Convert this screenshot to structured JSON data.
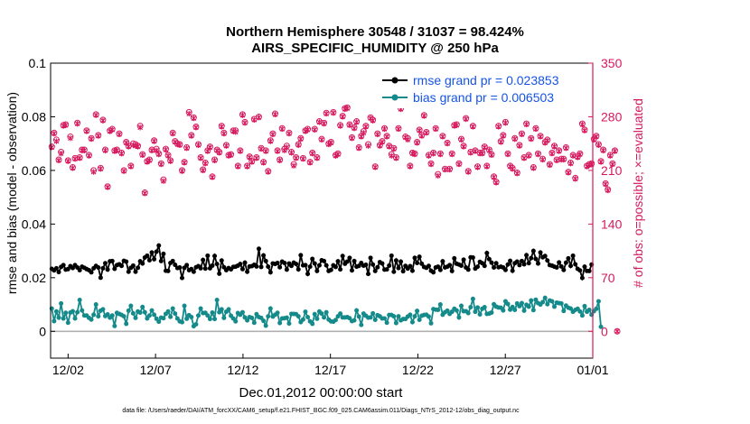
{
  "titles": {
    "line1": "Northern Hemisphere 30548 / 31037 = 98.424%",
    "line2": "AIRS_SPECIFIC_HUMIDITY @ 250 hPa"
  },
  "footer": "data file: /Users/raeder/DAI/ATM_forcXX/CAM6_setup/f.e21.FHIST_BGC.f09_025.CAM6assim.011/Diags_NTrS_2012-12/obs_diag_output.nc",
  "colors": {
    "black_series": "#000000",
    "teal_series": "#148a8a",
    "magenta_obs": "#d6195e",
    "legend_text": "#1553e6"
  },
  "chart_data": {
    "type": "line",
    "title": "Northern Hemisphere 30548 / 31037 = 98.424%",
    "subtitle": "AIRS_SPECIFIC_HUMIDITY @ 250 hPa",
    "xlabel": "Dec.01,2012 00:00:00 start",
    "ylabel": "rmse and bias (model - observation)",
    "y2label": "# of obs: o=possible; ×=evaluated",
    "xlim": [
      0,
      31
    ],
    "ylim": [
      -0.01,
      0.1
    ],
    "y2lim": [
      -35,
      350
    ],
    "x_ticks": [
      {
        "x": 1,
        "label": "12/02"
      },
      {
        "x": 6,
        "label": "12/07"
      },
      {
        "x": 11,
        "label": "12/12"
      },
      {
        "x": 16,
        "label": "12/17"
      },
      {
        "x": 21,
        "label": "12/22"
      },
      {
        "x": 26,
        "label": "12/27"
      },
      {
        "x": 31,
        "label": "01/01"
      }
    ],
    "y_ticks": [
      {
        "v": 0,
        "label": "0"
      },
      {
        "v": 0.02,
        "label": "0.02"
      },
      {
        "v": 0.04,
        "label": "0.04"
      },
      {
        "v": 0.06,
        "label": "0.06"
      },
      {
        "v": 0.08,
        "label": "0.08"
      },
      {
        "v": 0.1,
        "label": "0.1"
      }
    ],
    "y2_ticks": [
      {
        "v": 0,
        "label": "0"
      },
      {
        "v": 70,
        "label": "70"
      },
      {
        "v": 140,
        "label": "140"
      },
      {
        "v": 210,
        "label": "210"
      },
      {
        "v": 280,
        "label": "280"
      },
      {
        "v": 350,
        "label": "350"
      }
    ],
    "legend": [
      "rmse grand pr = 0.023853",
      "bias grand pr = 0.006503"
    ],
    "legend_position": "top-right",
    "series": [
      {
        "name": "rmse grand pr = 0.023853",
        "values": [
          0.0233,
          0.0227,
          0.0235,
          0.0221,
          0.024,
          0.0247,
          0.023,
          0.0232,
          0.0243,
          0.0236,
          0.0247,
          0.0238,
          0.0228,
          0.0241,
          0.0237,
          0.0232,
          0.0228,
          0.022,
          0.0235,
          0.0244,
          0.0238,
          0.02,
          0.0235,
          0.0254,
          0.023,
          0.0261,
          0.0262,
          0.0233,
          0.0247,
          0.025,
          0.0244,
          0.0263,
          0.026,
          0.0222,
          0.0237,
          0.0245,
          0.0222,
          0.0237,
          0.0261,
          0.0253,
          0.0275,
          0.0282,
          0.0265,
          0.0294,
          0.0269,
          0.0297,
          0.032,
          0.0262,
          0.0289,
          0.0226,
          0.0225,
          0.0255,
          0.0262,
          0.0248,
          0.0236,
          0.0238,
          0.0199,
          0.0237,
          0.0247,
          0.0228,
          0.0232,
          0.0222,
          0.0239,
          0.0243,
          0.0235,
          0.0266,
          0.0234,
          0.0282,
          0.0235,
          0.0245,
          0.0281,
          0.0251,
          0.0215,
          0.0264,
          0.0239,
          0.0228,
          0.0236,
          0.0231,
          0.024,
          0.0241,
          0.0245,
          0.0251,
          0.0232,
          0.0256,
          0.0222,
          0.0242,
          0.0243,
          0.0248,
          0.0242,
          0.0308,
          0.024,
          0.0283,
          0.0262,
          0.0241,
          0.022,
          0.0253,
          0.0251,
          0.0255,
          0.0239,
          0.026,
          0.0255,
          0.023,
          0.0253,
          0.0244,
          0.0256,
          0.0251,
          0.0231,
          0.0284,
          0.0246,
          0.0247,
          0.0214,
          0.0241,
          0.027,
          0.0253,
          0.0225,
          0.0246,
          0.0265,
          0.0262,
          0.0246,
          0.0225,
          0.0229,
          0.0246,
          0.024,
          0.0261,
          0.0231,
          0.0281,
          0.0252,
          0.026,
          0.0274,
          0.0227,
          0.0262,
          0.0241,
          0.0244,
          0.0255,
          0.0245,
          0.0248,
          0.0214,
          0.0274,
          0.0249,
          0.0225,
          0.0239,
          0.0258,
          0.0253,
          0.023,
          0.0231,
          0.0245,
          0.0282,
          0.0222,
          0.0264,
          0.0236,
          0.026,
          0.0224,
          0.0244,
          0.0234,
          0.0243,
          0.0226,
          0.0274,
          0.0255,
          0.0278,
          0.0252,
          0.024,
          0.0237,
          0.0244,
          0.0226,
          0.022,
          0.0238,
          0.0241,
          0.0229,
          0.0261,
          0.0238,
          0.0241,
          0.0247,
          0.0225,
          0.0272,
          0.0252,
          0.0249,
          0.0245,
          0.0267,
          0.0238,
          0.023,
          0.0276,
          0.0275,
          0.0234,
          0.0241,
          0.0259,
          0.0254,
          0.0244,
          0.0292,
          0.0269,
          0.0256,
          0.0238,
          0.0254,
          0.0239,
          0.0241,
          0.0238,
          0.0229,
          0.0249,
          0.0263,
          0.0226,
          0.0254,
          0.026,
          0.0247,
          0.0262,
          0.025,
          0.0284,
          0.0254,
          0.0273,
          0.03,
          0.027,
          0.0253,
          0.0294,
          0.0276,
          0.0281,
          0.0264,
          0.0247,
          0.0245,
          0.0241,
          0.0238,
          0.0257,
          0.0242,
          0.0229,
          0.0256,
          0.0272,
          0.0244,
          0.0282,
          0.025,
          0.0233,
          0.0227,
          0.0199,
          0.0241,
          0.0225,
          0.0225,
          0.0249
        ]
      },
      {
        "name": "bias grand pr = 0.006503",
        "values": [
          0.0085,
          0.0038,
          0.0074,
          0.0051,
          0.0104,
          0.0048,
          0.0069,
          0.0032,
          0.007,
          0.0075,
          0.0048,
          0.0071,
          0.0117,
          0.0078,
          0.0059,
          0.0059,
          0.005,
          0.0044,
          0.0062,
          0.01,
          0.0056,
          0.0077,
          0.0082,
          0.0057,
          0.0063,
          0.0051,
          0.0059,
          0.002,
          0.0069,
          0.0065,
          0.0061,
          0.0056,
          0.0028,
          0.0077,
          0.0095,
          0.0067,
          0.005,
          0.0074,
          0.007,
          0.0091,
          0.0071,
          0.0048,
          0.0059,
          0.0078,
          0.0062,
          0.0047,
          0.0036,
          0.0051,
          0.0049,
          0.0065,
          0.0074,
          0.0054,
          0.0085,
          0.0066,
          0.0048,
          0.0037,
          0.0034,
          0.0095,
          0.0047,
          0.006,
          0.0053,
          0.0019,
          0.0026,
          0.0059,
          0.0085,
          0.0068,
          0.0069,
          0.0059,
          0.0046,
          0.007,
          0.0046,
          0.0117,
          0.0071,
          0.0082,
          0.005,
          0.0073,
          0.0082,
          0.0058,
          0.0048,
          0.0037,
          0.0068,
          0.0062,
          0.0071,
          0.0052,
          0.0041,
          0.0053,
          0.005,
          0.0032,
          0.0064,
          0.0053,
          0.005,
          0.0039,
          0.0021,
          0.0056,
          0.0085,
          0.0055,
          0.0062,
          0.0069,
          0.0031,
          0.0048,
          0.0049,
          0.0051,
          0.0029,
          0.0065,
          0.0065,
          0.0064,
          0.0056,
          0.0034,
          0.0044,
          0.0073,
          0.0053,
          0.0037,
          0.0028,
          0.0064,
          0.0047,
          0.0074,
          0.0066,
          0.0052,
          0.0071,
          0.0044,
          0.0037,
          0.0036,
          0.0042,
          0.0056,
          0.0066,
          0.0052,
          0.0052,
          0.0053,
          0.0049,
          0.0038,
          0.0041,
          0.0078,
          0.0055,
          0.0024,
          0.0066,
          0.0058,
          0.0051,
          0.0052,
          0.0067,
          0.0043,
          0.006,
          0.0056,
          0.0048,
          0.0048,
          0.0032,
          0.0061,
          0.0061,
          0.0056,
          0.0031,
          0.0056,
          0.0041,
          0.0046,
          0.0046,
          0.0055,
          0.0062,
          0.0034,
          0.0056,
          0.0076,
          0.0043,
          0.0058,
          0.0061,
          0.0062,
          0.0055,
          0.003,
          0.0083,
          0.0081,
          0.008,
          0.01,
          0.0062,
          0.0071,
          0.0077,
          0.0065,
          0.0073,
          0.0084,
          0.0078,
          0.0052,
          0.0095,
          0.0075,
          0.0075,
          0.0068,
          0.009,
          0.0121,
          0.0073,
          0.0089,
          0.0063,
          0.0084,
          0.009,
          0.0065,
          0.0066,
          0.007,
          0.0101,
          0.0092,
          0.0089,
          0.0088,
          0.0078,
          0.0112,
          0.0102,
          0.0081,
          0.0091,
          0.008,
          0.0104,
          0.0094,
          0.0105,
          0.0077,
          0.0099,
          0.0092,
          0.0115,
          0.0079,
          0.0118,
          0.0105,
          0.01,
          0.0109,
          0.0125,
          0.0101,
          0.0115,
          0.0112,
          0.0092,
          0.0107,
          0.0105,
          0.0104,
          0.0076,
          0.0096,
          0.0088,
          0.0085,
          0.0073,
          0.008,
          0.0084,
          0.0074,
          0.0059,
          0.0094,
          0.0073,
          0.008,
          0.0062,
          0.0075,
          0.0084,
          0.0112,
          0.0017
        ]
      },
      {
        "name": "# of obs possible (o)",
        "values": [
          241,
          259,
          250,
          224,
          234,
          269,
          270,
          223,
          254,
          214,
          226,
          272,
          227,
          237,
          237,
          262,
          230,
          252,
          210,
          283,
          256,
          213,
          276,
          237,
          189,
          262,
          264,
          236,
          237,
          258,
          233,
          210,
          247,
          242,
          216,
          245,
          244,
          242,
          268,
          231,
          181,
          222,
          224,
          237,
          249,
          238,
          232,
          219,
          198,
          238,
          230,
          223,
          259,
          248,
          245,
          244,
          210,
          221,
          240,
          286,
          256,
          279,
          267,
          244,
          227,
          211,
          220,
          236,
          241,
          202,
          224,
          237,
          234,
          268,
          259,
          243,
          230,
          231,
          262,
          262,
          216,
          236,
          283,
          273,
          216,
          228,
          222,
          277,
          227,
          280,
          239,
          221,
          236,
          209,
          249,
          258,
          284,
          236,
          224,
          265,
          238,
          242,
          259,
          234,
          218,
          227,
          244,
          252,
          226,
          262,
          264,
          221,
          233,
          264,
          227,
          274,
          251,
          272,
          285,
          245,
          247,
          286,
          230,
          232,
          269,
          281,
          291,
          292,
          270,
          253,
          266,
          274,
          240,
          255,
          261,
          268,
          244,
          279,
          276,
          215,
          258,
          243,
          248,
          265,
          255,
          242,
          231,
          239,
          227,
          265,
          291,
          296,
          254,
          252,
          216,
          233,
          232,
          247,
          263,
          256,
          282,
          260,
          230,
          219,
          233,
          265,
          205,
          232,
          255,
          212,
          246,
          212,
          232,
          269,
          270,
          219,
          251,
          242,
          278,
          209,
          234,
          268,
          236,
          215,
          233,
          233,
          241,
          216,
          237,
          231,
          202,
          195,
          268,
          248,
          256,
          273,
          232,
          216,
          213,
          252,
          207,
          243,
          258,
          227,
          271,
          230,
          252,
          214,
          265,
          232,
          255,
          225,
          247,
          250,
          218,
          233,
          242,
          224,
          236,
          225,
          225,
          240,
          208,
          220,
          230,
          200,
          228,
          232,
          271,
          263,
          216,
          218,
          219,
          251,
          255,
          244,
          222,
          237,
          193,
          185,
          230,
          219,
          236,
          0
        ]
      },
      {
        "name": "# of obs evaluated (×)",
        "values": [
          240,
          258,
          248,
          223,
          232,
          268,
          269,
          222,
          252,
          213,
          225,
          271,
          226,
          236,
          236,
          261,
          229,
          251,
          208,
          282,
          255,
          212,
          275,
          236,
          188,
          261,
          263,
          235,
          236,
          257,
          232,
          209,
          246,
          241,
          215,
          243,
          242,
          241,
          266,
          230,
          180,
          221,
          223,
          236,
          248,
          236,
          231,
          218,
          196,
          237,
          229,
          222,
          258,
          247,
          244,
          243,
          209,
          220,
          239,
          284,
          255,
          278,
          266,
          243,
          226,
          210,
          219,
          235,
          240,
          201,
          223,
          236,
          233,
          267,
          258,
          242,
          229,
          230,
          261,
          260,
          215,
          235,
          282,
          272,
          215,
          227,
          221,
          276,
          226,
          279,
          238,
          220,
          235,
          208,
          248,
          257,
          283,
          235,
          223,
          264,
          236,
          240,
          258,
          233,
          216,
          226,
          243,
          251,
          225,
          261,
          263,
          220,
          232,
          263,
          226,
          273,
          250,
          271,
          284,
          244,
          246,
          285,
          229,
          231,
          268,
          280,
          290,
          291,
          269,
          252,
          265,
          273,
          239,
          254,
          259,
          267,
          242,
          278,
          275,
          214,
          257,
          242,
          247,
          264,
          254,
          241,
          229,
          238,
          226,
          264,
          290,
          295,
          253,
          250,
          215,
          232,
          231,
          246,
          262,
          255,
          281,
          259,
          229,
          218,
          232,
          264,
          203,
          231,
          254,
          211,
          245,
          211,
          231,
          268,
          269,
          218,
          250,
          241,
          277,
          208,
          233,
          267,
          235,
          214,
          232,
          232,
          240,
          215,
          236,
          230,
          201,
          194,
          267,
          247,
          255,
          272,
          231,
          215,
          212,
          251,
          206,
          242,
          257,
          226,
          270,
          229,
          251,
          213,
          264,
          231,
          254,
          224,
          246,
          249,
          217,
          232,
          241,
          223,
          235,
          224,
          224,
          239,
          207,
          219,
          229,
          199,
          227,
          231,
          270,
          262,
          215,
          217,
          218,
          250,
          254,
          243,
          221,
          236,
          192,
          184,
          229,
          218,
          235,
          0
        ]
      }
    ]
  }
}
